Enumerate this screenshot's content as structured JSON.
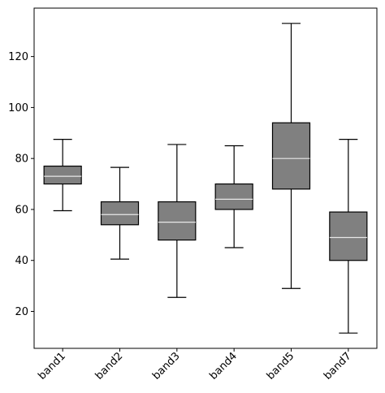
{
  "chart_data": {
    "type": "box",
    "categories": [
      "band1",
      "band2",
      "band3",
      "band4",
      "band5",
      "band7"
    ],
    "boxes": [
      {
        "label": "band1",
        "whisker_low": 59.5,
        "q1": 70,
        "median": 73,
        "q3": 77,
        "whisker_high": 87.5
      },
      {
        "label": "band2",
        "whisker_low": 40.5,
        "q1": 54,
        "median": 58,
        "q3": 63,
        "whisker_high": 76.5
      },
      {
        "label": "band3",
        "whisker_low": 25.5,
        "q1": 48,
        "median": 55,
        "q3": 63,
        "whisker_high": 85.5
      },
      {
        "label": "band4",
        "whisker_low": 45,
        "q1": 60,
        "median": 64,
        "q3": 70,
        "whisker_high": 85
      },
      {
        "label": "band5",
        "whisker_low": 29,
        "q1": 68,
        "median": 80,
        "q3": 94,
        "whisker_high": 133
      },
      {
        "label": "band7",
        "whisker_low": 11.5,
        "q1": 40,
        "median": 49,
        "q3": 59,
        "whisker_high": 87.5
      }
    ],
    "ylim": [
      5.5,
      139
    ],
    "yticks": [
      20,
      40,
      60,
      80,
      100,
      120
    ],
    "xtick_rotation": 45,
    "grid": false,
    "title": "",
    "xlabel": "",
    "ylabel": "",
    "colors": {
      "box_fill": "#808080",
      "box_edge": "#000000",
      "median": "#e8e8e8",
      "whisker": "#000000",
      "axes": "#000000"
    }
  }
}
